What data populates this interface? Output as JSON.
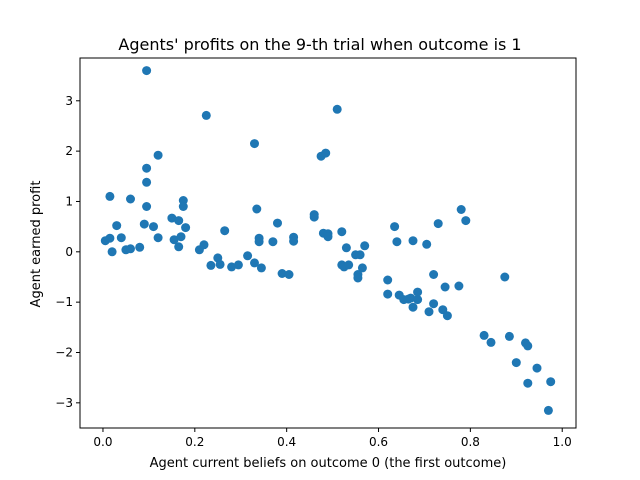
{
  "chart_data": {
    "type": "scatter",
    "title": "Agents' profits on the 9-th trial when outcome is 1",
    "xlabel": "Agent current beliefs on outcome 0 (the first outcome)",
    "ylabel": "Agent earned profit",
    "xlim": [
      -0.05,
      1.03
    ],
    "ylim": [
      -3.5,
      3.85
    ],
    "xticks": [
      0.0,
      0.2,
      0.4,
      0.6,
      0.8,
      1.0
    ],
    "xtick_labels": [
      "0.0",
      "0.2",
      "0.4",
      "0.6",
      "0.8",
      "1.0"
    ],
    "yticks": [
      -3,
      -2,
      -1,
      0,
      1,
      2,
      3
    ],
    "ytick_labels": [
      "−3",
      "−2",
      "−1",
      "0",
      "1",
      "2",
      "3"
    ],
    "grid": false,
    "marker_color": "#1f77b4",
    "points": [
      [
        0.005,
        0.22
      ],
      [
        0.015,
        1.1
      ],
      [
        0.015,
        0.27
      ],
      [
        0.02,
        0.0
      ],
      [
        0.03,
        0.52
      ],
      [
        0.04,
        0.28
      ],
      [
        0.05,
        0.04
      ],
      [
        0.06,
        1.05
      ],
      [
        0.06,
        0.06
      ],
      [
        0.08,
        0.09
      ],
      [
        0.09,
        0.55
      ],
      [
        0.095,
        3.6
      ],
      [
        0.095,
        1.66
      ],
      [
        0.095,
        1.38
      ],
      [
        0.095,
        0.9
      ],
      [
        0.11,
        0.5
      ],
      [
        0.12,
        1.92
      ],
      [
        0.12,
        0.28
      ],
      [
        0.15,
        0.67
      ],
      [
        0.155,
        0.24
      ],
      [
        0.165,
        0.62
      ],
      [
        0.165,
        0.1
      ],
      [
        0.17,
        0.3
      ],
      [
        0.175,
        1.02
      ],
      [
        0.175,
        0.9
      ],
      [
        0.18,
        0.48
      ],
      [
        0.21,
        0.04
      ],
      [
        0.22,
        0.14
      ],
      [
        0.225,
        2.71
      ],
      [
        0.235,
        -0.27
      ],
      [
        0.25,
        -0.12
      ],
      [
        0.255,
        -0.25
      ],
      [
        0.265,
        0.42
      ],
      [
        0.28,
        -0.3
      ],
      [
        0.295,
        -0.26
      ],
      [
        0.315,
        -0.08
      ],
      [
        0.33,
        2.15
      ],
      [
        0.33,
        -0.22
      ],
      [
        0.335,
        0.85
      ],
      [
        0.34,
        0.27
      ],
      [
        0.34,
        0.2
      ],
      [
        0.345,
        -0.32
      ],
      [
        0.37,
        0.2
      ],
      [
        0.38,
        0.57
      ],
      [
        0.39,
        -0.43
      ],
      [
        0.405,
        -0.45
      ],
      [
        0.415,
        0.29
      ],
      [
        0.415,
        0.21
      ],
      [
        0.46,
        0.69
      ],
      [
        0.46,
        0.74
      ],
      [
        0.475,
        1.9
      ],
      [
        0.48,
        0.37
      ],
      [
        0.485,
        1.96
      ],
      [
        0.49,
        0.36
      ],
      [
        0.49,
        0.3
      ],
      [
        0.51,
        2.83
      ],
      [
        0.52,
        -0.26
      ],
      [
        0.52,
        0.4
      ],
      [
        0.525,
        -0.3
      ],
      [
        0.53,
        0.08
      ],
      [
        0.535,
        -0.26
      ],
      [
        0.55,
        -0.06
      ],
      [
        0.555,
        -0.45
      ],
      [
        0.555,
        -0.52
      ],
      [
        0.56,
        -0.06
      ],
      [
        0.565,
        -0.32
      ],
      [
        0.57,
        0.12
      ],
      [
        0.62,
        -0.56
      ],
      [
        0.62,
        -0.84
      ],
      [
        0.635,
        0.5
      ],
      [
        0.64,
        0.2
      ],
      [
        0.645,
        -0.86
      ],
      [
        0.655,
        -0.95
      ],
      [
        0.665,
        -0.94
      ],
      [
        0.67,
        -0.92
      ],
      [
        0.675,
        0.22
      ],
      [
        0.675,
        -1.1
      ],
      [
        0.685,
        -0.8
      ],
      [
        0.685,
        -0.95
      ],
      [
        0.705,
        0.15
      ],
      [
        0.71,
        -1.19
      ],
      [
        0.72,
        -1.03
      ],
      [
        0.72,
        -0.45
      ],
      [
        0.73,
        0.56
      ],
      [
        0.74,
        -1.15
      ],
      [
        0.745,
        -0.7
      ],
      [
        0.75,
        -1.27
      ],
      [
        0.775,
        -0.68
      ],
      [
        0.78,
        0.84
      ],
      [
        0.79,
        0.62
      ],
      [
        0.83,
        -1.66
      ],
      [
        0.845,
        -1.8
      ],
      [
        0.875,
        -0.5
      ],
      [
        0.885,
        -1.68
      ],
      [
        0.9,
        -2.2
      ],
      [
        0.92,
        -1.81
      ],
      [
        0.925,
        -1.87
      ],
      [
        0.925,
        -2.61
      ],
      [
        0.945,
        -2.31
      ],
      [
        0.97,
        -3.15
      ],
      [
        0.975,
        -2.58
      ]
    ]
  }
}
